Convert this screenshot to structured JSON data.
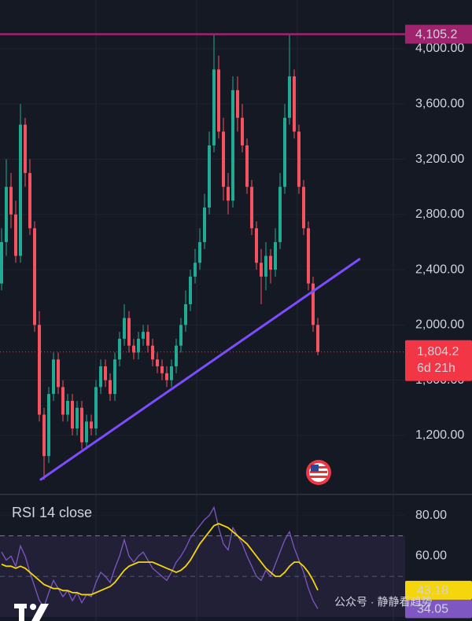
{
  "chart_data": [
    {
      "type": "candlestick",
      "open": [
        2300,
        2600,
        3000,
        2800,
        2500,
        3450,
        3100,
        2700,
        2000,
        1350,
        1050,
        1500,
        1750,
        1550,
        1350,
        1450,
        1250,
        1400,
        1150,
        1300,
        1250,
        1550,
        1700,
        1600,
        1500,
        1750,
        1900,
        2050,
        1850,
        1800,
        1900,
        1950,
        1850,
        1750,
        1700,
        1650,
        1600,
        1700,
        1850,
        2000,
        2150,
        2350,
        2450,
        2600,
        2850,
        3300,
        3850,
        3400,
        3000,
        2900,
        3700,
        3500,
        3300,
        3000,
        2700,
        2450,
        2350,
        2500,
        2400,
        2600,
        3000,
        3500,
        3800,
        3400,
        3000,
        2700,
        2300,
        2000
      ],
      "high": [
        2700,
        3200,
        3100,
        2900,
        3600,
        3500,
        3200,
        2750,
        2100,
        1400,
        1550,
        1800,
        1800,
        1600,
        1500,
        1500,
        1450,
        1450,
        1350,
        1350,
        1600,
        1750,
        1750,
        1650,
        1800,
        1950,
        2150,
        2100,
        1900,
        1950,
        2000,
        2000,
        1900,
        1800,
        1750,
        1700,
        1750,
        1900,
        2050,
        2250,
        2400,
        2550,
        2700,
        2950,
        3400,
        4105,
        3950,
        3500,
        3100,
        3800,
        3800,
        3600,
        3350,
        3050,
        2750,
        2550,
        2600,
        2550,
        2700,
        3100,
        3600,
        4100,
        3850,
        3450,
        3050,
        2750,
        2350,
        2050
      ],
      "low": [
        2250,
        2500,
        2700,
        2450,
        2450,
        3000,
        2650,
        1950,
        1300,
        880,
        1000,
        1450,
        1500,
        1300,
        1300,
        1200,
        1200,
        1100,
        1100,
        1200,
        1200,
        1500,
        1550,
        1450,
        1450,
        1700,
        1850,
        1800,
        1750,
        1750,
        1850,
        1800,
        1700,
        1650,
        1600,
        1550,
        1550,
        1650,
        1800,
        1950,
        2100,
        2300,
        2400,
        2550,
        2800,
        3250,
        3350,
        2900,
        2800,
        2850,
        3400,
        3250,
        2950,
        2650,
        2400,
        2150,
        2250,
        2300,
        2350,
        2550,
        2950,
        3450,
        3350,
        2950,
        2650,
        2250,
        1950,
        1780
      ],
      "close": [
        2600,
        3000,
        2800,
        2500,
        3450,
        3100,
        2700,
        2000,
        1350,
        1050,
        1500,
        1750,
        1550,
        1350,
        1450,
        1250,
        1400,
        1150,
        1300,
        1250,
        1550,
        1700,
        1600,
        1500,
        1750,
        1900,
        2050,
        1850,
        1800,
        1900,
        1950,
        1850,
        1750,
        1700,
        1650,
        1600,
        1700,
        1850,
        2000,
        2150,
        2350,
        2450,
        2600,
        2850,
        3300,
        3850,
        3400,
        3000,
        2900,
        3700,
        3500,
        3300,
        3000,
        2700,
        2450,
        2350,
        2500,
        2400,
        2600,
        3000,
        3500,
        3800,
        3400,
        3000,
        2700,
        2300,
        2000,
        1804.2
      ],
      "up_color": "#22ab94",
      "down_color": "#f7525f",
      "ylim": [
        778,
        4353
      ],
      "yticks": [
        {
          "value": 1200,
          "label": "1,200.00"
        },
        {
          "value": 1600,
          "label": "1,600.00"
        },
        {
          "value": 2000,
          "label": "2,000.00"
        },
        {
          "value": 2400,
          "label": "2,400.00"
        },
        {
          "value": 2800,
          "label": "2,800.00"
        },
        {
          "value": 3200,
          "label": "3,200.00"
        },
        {
          "value": 3600,
          "label": "3,600.00"
        },
        {
          "value": 4000,
          "label": "4,000.00"
        }
      ],
      "grid": true,
      "resistance": {
        "value": 4105.2,
        "label": "4,105.2",
        "color": "#a0236e"
      },
      "last_price": {
        "value": 1804.2,
        "label": "1,804.2",
        "countdown": "6d 21h",
        "color": "#f23645"
      },
      "trendline": {
        "x": [
          8.3,
          75.8
        ],
        "y": [
          880,
          2476
        ],
        "color": "#7c4dff"
      }
    },
    {
      "type": "line",
      "title": "RSI 14 close",
      "series": [
        {
          "color": "#7e57c2",
          "values": [
            62,
            58,
            60,
            55,
            65,
            60,
            52,
            45,
            38,
            35,
            42,
            48,
            44,
            40,
            43,
            38,
            42,
            37,
            41,
            40,
            47,
            52,
            50,
            47,
            54,
            60,
            68,
            60,
            57,
            60,
            62,
            58,
            54,
            52,
            50,
            48,
            52,
            57,
            60,
            64,
            69,
            72,
            75,
            78,
            80,
            84,
            74,
            66,
            63,
            74,
            70,
            66,
            60,
            55,
            50,
            48,
            53,
            50,
            56,
            62,
            68,
            72,
            64,
            58,
            52,
            44,
            38,
            34.05
          ]
        },
        {
          "color": "#f5d50b",
          "values": [
            56,
            55,
            55,
            54,
            55,
            54,
            52,
            50,
            48,
            46,
            45,
            44,
            44,
            43,
            43,
            42,
            42,
            41,
            41,
            41,
            42,
            43,
            44,
            45,
            47,
            50,
            53,
            55,
            56,
            57,
            57,
            57,
            57,
            56,
            55,
            54,
            53,
            52,
            53,
            55,
            58,
            62,
            66,
            69,
            72,
            75,
            76,
            75,
            74,
            72,
            70,
            68,
            66,
            63,
            60,
            57,
            54,
            52,
            50,
            50,
            52,
            55,
            57,
            57,
            55,
            52,
            48,
            43.18
          ]
        }
      ],
      "ylim": [
        28,
        90
      ],
      "yticks": [
        {
          "value": 80,
          "label": "80.00"
        },
        {
          "value": 60,
          "label": "60.00"
        }
      ],
      "band": [
        30,
        70
      ],
      "midline": 50
    }
  ],
  "watermark": "公众号 · 静静看趋势"
}
